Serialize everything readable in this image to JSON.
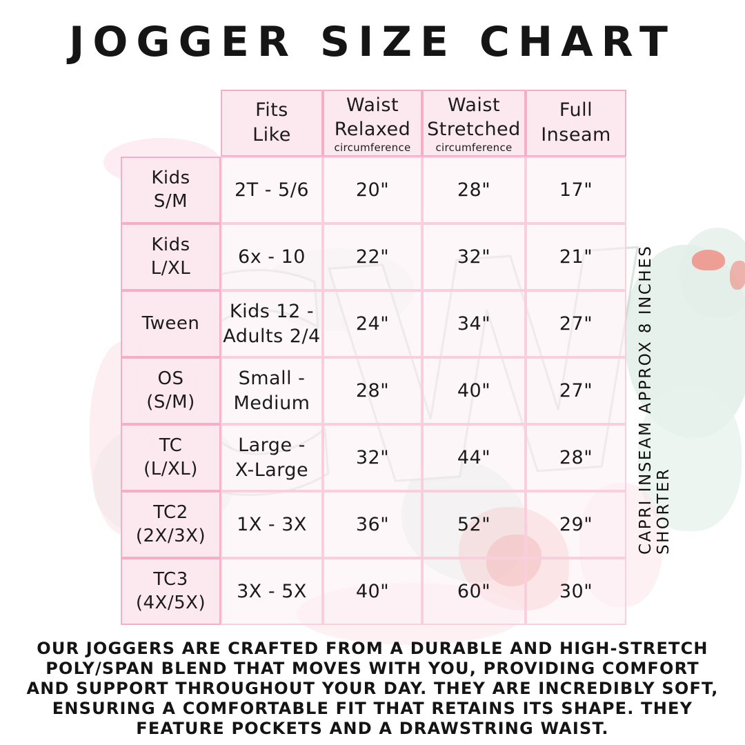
{
  "title": "JOGGER SIZE CHART",
  "side_note": "CAPRI INSEAM APPROX 8 INCHES SHORTER",
  "description": "OUR JOGGERS ARE CRAFTED FROM A DURABLE AND HIGH-STRETCH POLY/SPAN BLEND THAT MOVES WITH YOU, PROVIDING COMFORT AND SUPPORT THROUGHOUT YOUR DAY. THEY ARE INCREDIBLY SOFT, ENSURING A COMFORTABLE FIT THAT RETAINS ITS SHAPE. THEY FEATURE POCKETS AND A DRAWSTRING WAIST.",
  "watermark": "CW",
  "colors": {
    "accent_pink_border": "#f5aec6",
    "light_grid_pink": "#f9cfdd",
    "header_cell_fill": "#fce8ee",
    "text": "#1b1b1b",
    "mint_watercolor": "#e3efe8",
    "coral_watercolor": "#ef8b81"
  },
  "chart_data": {
    "type": "table",
    "title": "JOGGER SIZE CHART",
    "columns": [
      {
        "label": "Fits\nLike",
        "sub": ""
      },
      {
        "label": "Waist\nRelaxed",
        "sub": "circumference"
      },
      {
        "label": "Waist\nStretched",
        "sub": "circumference"
      },
      {
        "label": "Full\nInseam",
        "sub": ""
      }
    ],
    "rows": [
      {
        "size": "Kids\nS/M",
        "fits": "2T - 5/6",
        "relaxed": "20\"",
        "stretched": "28\"",
        "inseam": "17\""
      },
      {
        "size": "Kids\nL/XL",
        "fits": "6x - 10",
        "relaxed": "22\"",
        "stretched": "32\"",
        "inseam": "21\""
      },
      {
        "size": "Tween",
        "fits": "Kids 12 -\nAdults 2/4",
        "relaxed": "24\"",
        "stretched": "34\"",
        "inseam": "27\""
      },
      {
        "size": "OS\n(S/M)",
        "fits": "Small -\nMedium",
        "relaxed": "28\"",
        "stretched": "40\"",
        "inseam": "27\""
      },
      {
        "size": "TC\n(L/XL)",
        "fits": "Large -\nX-Large",
        "relaxed": "32\"",
        "stretched": "44\"",
        "inseam": "28\""
      },
      {
        "size": "TC2\n(2X/3X)",
        "fits": "1X - 3X",
        "relaxed": "36\"",
        "stretched": "52\"",
        "inseam": "29\""
      },
      {
        "size": "TC3\n(4X/5X)",
        "fits": "3X - 5X",
        "relaxed": "40\"",
        "stretched": "60\"",
        "inseam": "30\""
      }
    ]
  }
}
